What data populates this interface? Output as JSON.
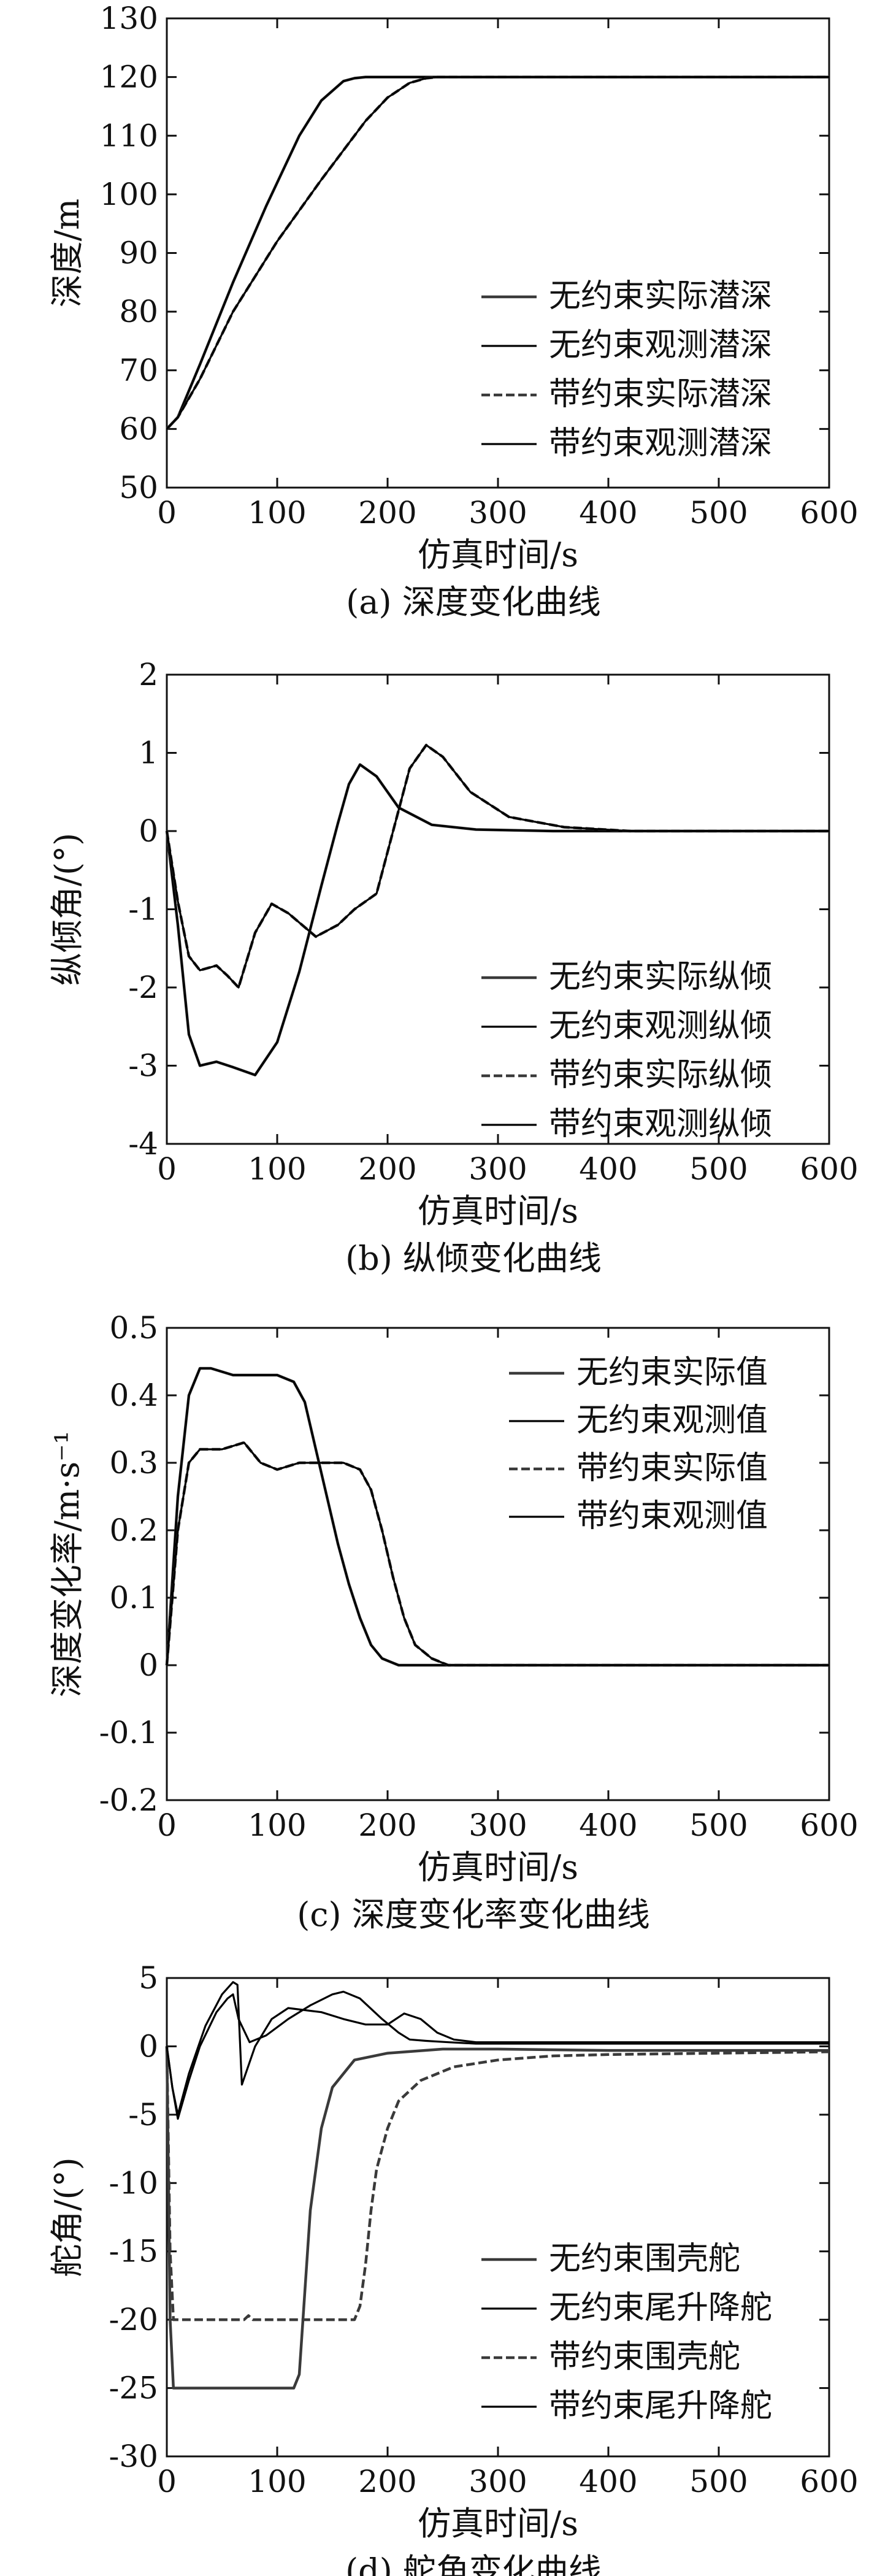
{
  "chart_data": [
    {
      "type": "line",
      "caption": "(a) 深度变化曲线",
      "xlabel": "仿真时间/s",
      "ylabel": "深度/m",
      "xlim": [
        0,
        600
      ],
      "ylim": [
        50,
        130
      ],
      "xticks": [
        "0",
        "100",
        "200",
        "300",
        "400",
        "500",
        "600"
      ],
      "yticks": [
        "50",
        "60",
        "70",
        "80",
        "90",
        "100",
        "110",
        "120",
        "130"
      ],
      "legend_position": "right-middle",
      "series": [
        {
          "name": "无约束实际潜深",
          "color": "#3a3a3a",
          "x": [
            0,
            10,
            30,
            60,
            90,
            120,
            140,
            160,
            170,
            180,
            200,
            250,
            600
          ],
          "y": [
            60,
            62,
            71,
            85,
            98,
            110,
            116,
            119.3,
            119.8,
            120,
            120,
            120,
            120
          ]
        },
        {
          "name": "无约束观测潜深",
          "color": "#000000",
          "x": [
            0,
            10,
            30,
            60,
            90,
            120,
            140,
            160,
            170,
            180,
            200,
            250,
            600
          ],
          "y": [
            60,
            62,
            71,
            85,
            98,
            110,
            116,
            119.3,
            119.8,
            120,
            120,
            120,
            120
          ]
        },
        {
          "name": "带约束实际潜深",
          "color": "#3a3a3a",
          "x": [
            0,
            10,
            30,
            60,
            100,
            140,
            180,
            200,
            220,
            235,
            245,
            300,
            600
          ],
          "y": [
            60,
            62,
            68.5,
            80,
            92,
            102.5,
            112.5,
            116.5,
            119,
            119.8,
            120,
            120,
            120
          ]
        },
        {
          "name": "带约束观测潜深",
          "color": "#000000",
          "x": [
            0,
            10,
            30,
            60,
            100,
            140,
            180,
            200,
            220,
            235,
            245,
            300,
            600
          ],
          "y": [
            60,
            62,
            68.5,
            80,
            92,
            102.5,
            112.5,
            116.5,
            119,
            119.8,
            120,
            120,
            120
          ]
        }
      ]
    },
    {
      "type": "line",
      "caption": "(b) 纵倾变化曲线",
      "xlabel": "仿真时间/s",
      "ylabel": "纵倾角/(°)",
      "xlim": [
        0,
        600
      ],
      "ylim": [
        -4,
        2
      ],
      "xticks": [
        "0",
        "100",
        "200",
        "300",
        "400",
        "500",
        "600"
      ],
      "yticks": [
        "-4",
        "-3",
        "-2",
        "-1",
        "0",
        "1",
        "2"
      ],
      "legend_position": "right-middle",
      "series": [
        {
          "name": "无约束实际纵倾",
          "color": "#3a3a3a",
          "x": [
            0,
            10,
            20,
            30,
            45,
            60,
            80,
            100,
            120,
            140,
            155,
            165,
            175,
            190,
            210,
            240,
            280,
            350,
            600
          ],
          "y": [
            0,
            -1.2,
            -2.6,
            -3.0,
            -2.95,
            -3.02,
            -3.12,
            -2.7,
            -1.8,
            -0.7,
            0.1,
            0.6,
            0.85,
            0.7,
            0.3,
            0.08,
            0.02,
            0.0,
            0.0
          ]
        },
        {
          "name": "无约束观测纵倾",
          "color": "#000000",
          "x": [
            0,
            10,
            20,
            30,
            45,
            60,
            80,
            100,
            120,
            140,
            155,
            165,
            175,
            190,
            210,
            240,
            280,
            350,
            600
          ],
          "y": [
            0,
            -1.2,
            -2.6,
            -3.0,
            -2.95,
            -3.02,
            -3.12,
            -2.7,
            -1.8,
            -0.7,
            0.1,
            0.6,
            0.85,
            0.7,
            0.3,
            0.08,
            0.02,
            0.0,
            0.0
          ]
        },
        {
          "name": "带约束实际纵倾",
          "color": "#3a3a3a",
          "x": [
            0,
            10,
            20,
            30,
            45,
            55,
            65,
            80,
            95,
            110,
            135,
            155,
            170,
            190,
            205,
            220,
            235,
            250,
            275,
            310,
            360,
            420,
            600
          ],
          "y": [
            0,
            -0.9,
            -1.6,
            -1.78,
            -1.72,
            -1.85,
            -2.0,
            -1.3,
            -0.93,
            -1.05,
            -1.35,
            -1.2,
            -1.0,
            -0.8,
            0.0,
            0.8,
            1.1,
            0.95,
            0.5,
            0.18,
            0.05,
            0.0,
            0.0
          ]
        },
        {
          "name": "带约束观测纵倾",
          "color": "#000000",
          "x": [
            0,
            10,
            20,
            30,
            45,
            55,
            65,
            80,
            95,
            110,
            135,
            155,
            170,
            190,
            205,
            220,
            235,
            250,
            275,
            310,
            360,
            420,
            600
          ],
          "y": [
            0,
            -0.9,
            -1.6,
            -1.78,
            -1.72,
            -1.85,
            -2.0,
            -1.3,
            -0.93,
            -1.05,
            -1.35,
            -1.2,
            -1.0,
            -0.8,
            0.0,
            0.8,
            1.1,
            0.95,
            0.5,
            0.18,
            0.05,
            0.0,
            0.0
          ]
        }
      ]
    },
    {
      "type": "line",
      "caption": "(c) 深度变化率变化曲线",
      "xlabel": "仿真时间/s",
      "ylabel": "深度变化率/m·s⁻¹",
      "xlim": [
        0,
        600
      ],
      "ylim": [
        -0.2,
        0.5
      ],
      "xticks": [
        "0",
        "100",
        "200",
        "300",
        "400",
        "500",
        "600"
      ],
      "yticks": [
        "-0.2",
        "-0.1",
        "0",
        "0.1",
        "0.2",
        "0.3",
        "0.4",
        "0.5"
      ],
      "legend_position": "top-right",
      "series": [
        {
          "name": "无约束实际值",
          "color": "#3a3a3a",
          "x": [
            0,
            10,
            20,
            30,
            40,
            60,
            80,
            100,
            115,
            125,
            135,
            145,
            155,
            165,
            175,
            185,
            195,
            210,
            600
          ],
          "y": [
            0,
            0.25,
            0.4,
            0.44,
            0.44,
            0.43,
            0.43,
            0.43,
            0.42,
            0.39,
            0.32,
            0.25,
            0.18,
            0.12,
            0.07,
            0.03,
            0.01,
            0.0,
            0.0
          ]
        },
        {
          "name": "无约束观测值",
          "color": "#000000",
          "x": [
            0,
            10,
            20,
            30,
            40,
            60,
            80,
            100,
            115,
            125,
            135,
            145,
            155,
            165,
            175,
            185,
            195,
            210,
            600
          ],
          "y": [
            0,
            0.25,
            0.4,
            0.44,
            0.44,
            0.43,
            0.43,
            0.43,
            0.42,
            0.39,
            0.32,
            0.25,
            0.18,
            0.12,
            0.07,
            0.03,
            0.01,
            0.0,
            0.0
          ]
        },
        {
          "name": "带约束实际值",
          "color": "#3a3a3a",
          "x": [
            0,
            10,
            20,
            30,
            50,
            70,
            85,
            100,
            120,
            140,
            160,
            175,
            185,
            195,
            205,
            215,
            225,
            240,
            255,
            600
          ],
          "y": [
            0,
            0.2,
            0.3,
            0.32,
            0.32,
            0.33,
            0.3,
            0.29,
            0.3,
            0.3,
            0.3,
            0.29,
            0.26,
            0.2,
            0.13,
            0.07,
            0.03,
            0.01,
            0.0,
            0.0
          ]
        },
        {
          "name": "带约束观测值",
          "color": "#000000",
          "x": [
            0,
            10,
            20,
            30,
            50,
            70,
            85,
            100,
            120,
            140,
            160,
            175,
            185,
            195,
            205,
            215,
            225,
            240,
            255,
            600
          ],
          "y": [
            0,
            0.2,
            0.3,
            0.32,
            0.32,
            0.33,
            0.3,
            0.29,
            0.3,
            0.3,
            0.3,
            0.29,
            0.26,
            0.2,
            0.13,
            0.07,
            0.03,
            0.01,
            0.0,
            0.0
          ]
        }
      ]
    },
    {
      "type": "line",
      "caption": "(d) 舵角变化曲线",
      "xlabel": "仿真时间/s",
      "ylabel": "舵角/(°)",
      "xlim": [
        0,
        600
      ],
      "ylim": [
        -30,
        5
      ],
      "xticks": [
        "0",
        "100",
        "200",
        "300",
        "400",
        "500",
        "600"
      ],
      "yticks": [
        "-30",
        "-25",
        "-20",
        "-15",
        "-10",
        "-5",
        "0",
        "5"
      ],
      "legend_position": "bottom-right",
      "series": [
        {
          "name": "无约束围壳舵",
          "color": "#3a3a3a",
          "x": [
            0,
            3,
            6,
            10,
            60,
            80,
            100,
            115,
            120,
            125,
            130,
            140,
            150,
            170,
            200,
            250,
            300,
            400,
            600
          ],
          "y": [
            0,
            -20,
            -25,
            -25,
            -25,
            -25,
            -25,
            -25,
            -24,
            -18,
            -12,
            -6,
            -3,
            -1,
            -0.5,
            -0.2,
            -0.2,
            -0.3,
            -0.3
          ]
        },
        {
          "name": "无约束尾升降舵",
          "color": "#000000",
          "x": [
            0,
            5,
            10,
            20,
            30,
            45,
            55,
            60,
            65,
            75,
            90,
            110,
            130,
            150,
            160,
            175,
            195,
            210,
            220,
            235,
            255,
            280,
            300,
            600
          ],
          "y": [
            0,
            -3,
            -5.3,
            -2.5,
            0,
            2.5,
            3.5,
            3.8,
            2.0,
            0.3,
            0.8,
            2.0,
            3.0,
            3.8,
            4.0,
            3.5,
            2.0,
            1.0,
            0.5,
            0.4,
            0.3,
            0.2,
            0.2,
            0.2
          ]
        },
        {
          "name": "带约束围壳舵",
          "color": "#3a3a3a",
          "x": [
            0,
            3,
            6,
            10,
            70,
            74,
            78,
            150,
            170,
            175,
            180,
            185,
            190,
            200,
            210,
            230,
            260,
            300,
            350,
            400,
            600
          ],
          "y": [
            0,
            -15,
            -20,
            -20,
            -20,
            -19.7,
            -20,
            -20,
            -20,
            -19,
            -16,
            -12,
            -9,
            -6,
            -4,
            -2.5,
            -1.5,
            -1,
            -0.7,
            -0.6,
            -0.4
          ]
        },
        {
          "name": "带约束尾升降舵",
          "color": "#000000",
          "x": [
            0,
            5,
            10,
            20,
            35,
            50,
            60,
            64,
            68,
            80,
            95,
            110,
            140,
            160,
            180,
            200,
            215,
            230,
            245,
            260,
            280,
            300,
            600
          ],
          "y": [
            0,
            -3,
            -5,
            -2,
            1.5,
            3.8,
            4.7,
            4.5,
            -2.8,
            0,
            2.0,
            2.8,
            2.5,
            2.0,
            1.6,
            1.6,
            2.4,
            2.0,
            1.0,
            0.5,
            0.3,
            0.3,
            0.3
          ]
        }
      ]
    }
  ]
}
